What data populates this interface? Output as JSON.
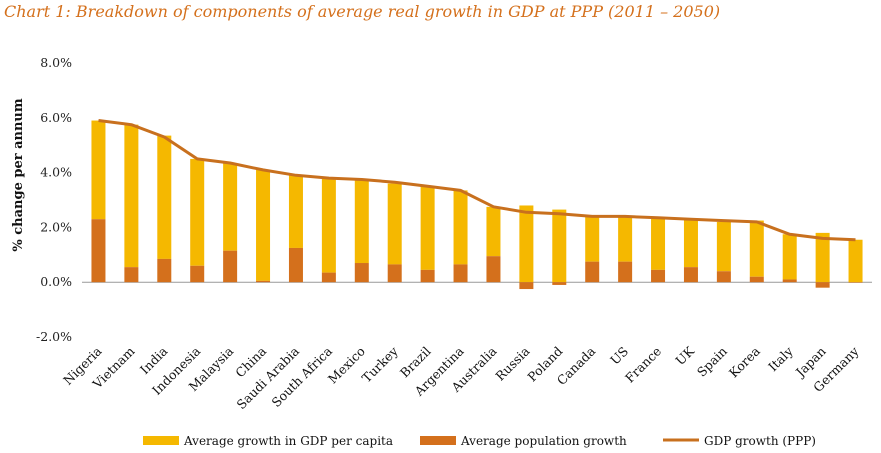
{
  "chart_data": {
    "type": "bar",
    "title": "Chart 1: Breakdown of components of average real growth in GDP at PPP (2011 – 2050)",
    "ylabel": "% change per annum",
    "ylim": [
      -2.0,
      8.0
    ],
    "yticks": [
      "8.0%",
      "6.0%",
      "4.0%",
      "2.0%",
      "0.0%",
      "-2.0%"
    ],
    "ytick_values": [
      8,
      6,
      4,
      2,
      0,
      -2
    ],
    "categories": [
      "Nigeria",
      "Vietnam",
      "India",
      "Indonesia",
      "Malaysia",
      "China",
      "Saudi Arabia",
      "South Africa",
      "Mexico",
      "Turkey",
      "Brazil",
      "Argentina",
      "Australia",
      "Russia",
      "Poland",
      "Canada",
      "US",
      "France",
      "UK",
      "Spain",
      "Korea",
      "Italy",
      "Japan",
      "Germany"
    ],
    "series": [
      {
        "name": "Average growth in GDP per capita",
        "kind": "bar",
        "color": "#F5B800",
        "values": [
          3.6,
          5.2,
          4.5,
          3.9,
          3.2,
          4.05,
          2.65,
          3.45,
          3.05,
          2.95,
          3.05,
          2.7,
          1.8,
          2.8,
          2.65,
          1.65,
          1.65,
          1.9,
          1.75,
          1.8,
          2.05,
          1.65,
          1.8,
          1.55
        ]
      },
      {
        "name": "Average population growth",
        "kind": "bar",
        "color": "#D4701C",
        "values": [
          2.3,
          0.55,
          0.85,
          0.6,
          1.15,
          0.05,
          1.25,
          0.35,
          0.7,
          0.65,
          0.45,
          0.65,
          0.95,
          -0.25,
          -0.1,
          0.75,
          0.75,
          0.45,
          0.55,
          0.4,
          0.2,
          0.1,
          -0.2,
          0.0
        ]
      },
      {
        "name": "GDP growth (PPP)",
        "kind": "line",
        "color": "#C8701E",
        "values": [
          5.9,
          5.75,
          5.3,
          4.5,
          4.35,
          4.1,
          3.9,
          3.8,
          3.75,
          3.65,
          3.5,
          3.35,
          2.75,
          2.55,
          2.5,
          2.4,
          2.4,
          2.35,
          2.3,
          2.25,
          2.2,
          1.75,
          1.6,
          1.55
        ]
      }
    ],
    "legend": "bottom",
    "grid": false
  }
}
